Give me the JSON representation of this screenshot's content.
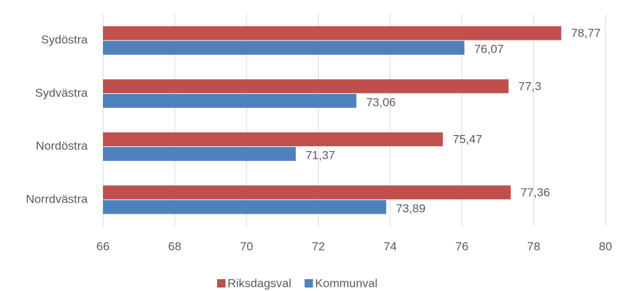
{
  "chart_data": {
    "type": "hbar",
    "categories": [
      "Sydöstra",
      "Sydvästra",
      "Nordöstra",
      "Norrdvästra"
    ],
    "series": [
      {
        "name": "Riksdagsval",
        "color": "#c0504d",
        "values": [
          78.77,
          77.3,
          75.47,
          77.36
        ],
        "value_labels": [
          "78,77",
          "77,3",
          "75,47",
          "77,36"
        ]
      },
      {
        "name": "Kommunval",
        "color": "#4f81bd",
        "values": [
          76.07,
          73.06,
          71.37,
          73.89
        ],
        "value_labels": [
          "76,07",
          "73,06",
          "71,37",
          "73,89"
        ]
      }
    ],
    "xlim": [
      66,
      80
    ],
    "xticks": [
      66,
      68,
      70,
      72,
      74,
      76,
      78,
      80
    ],
    "grid": true,
    "legend": "bottom"
  }
}
